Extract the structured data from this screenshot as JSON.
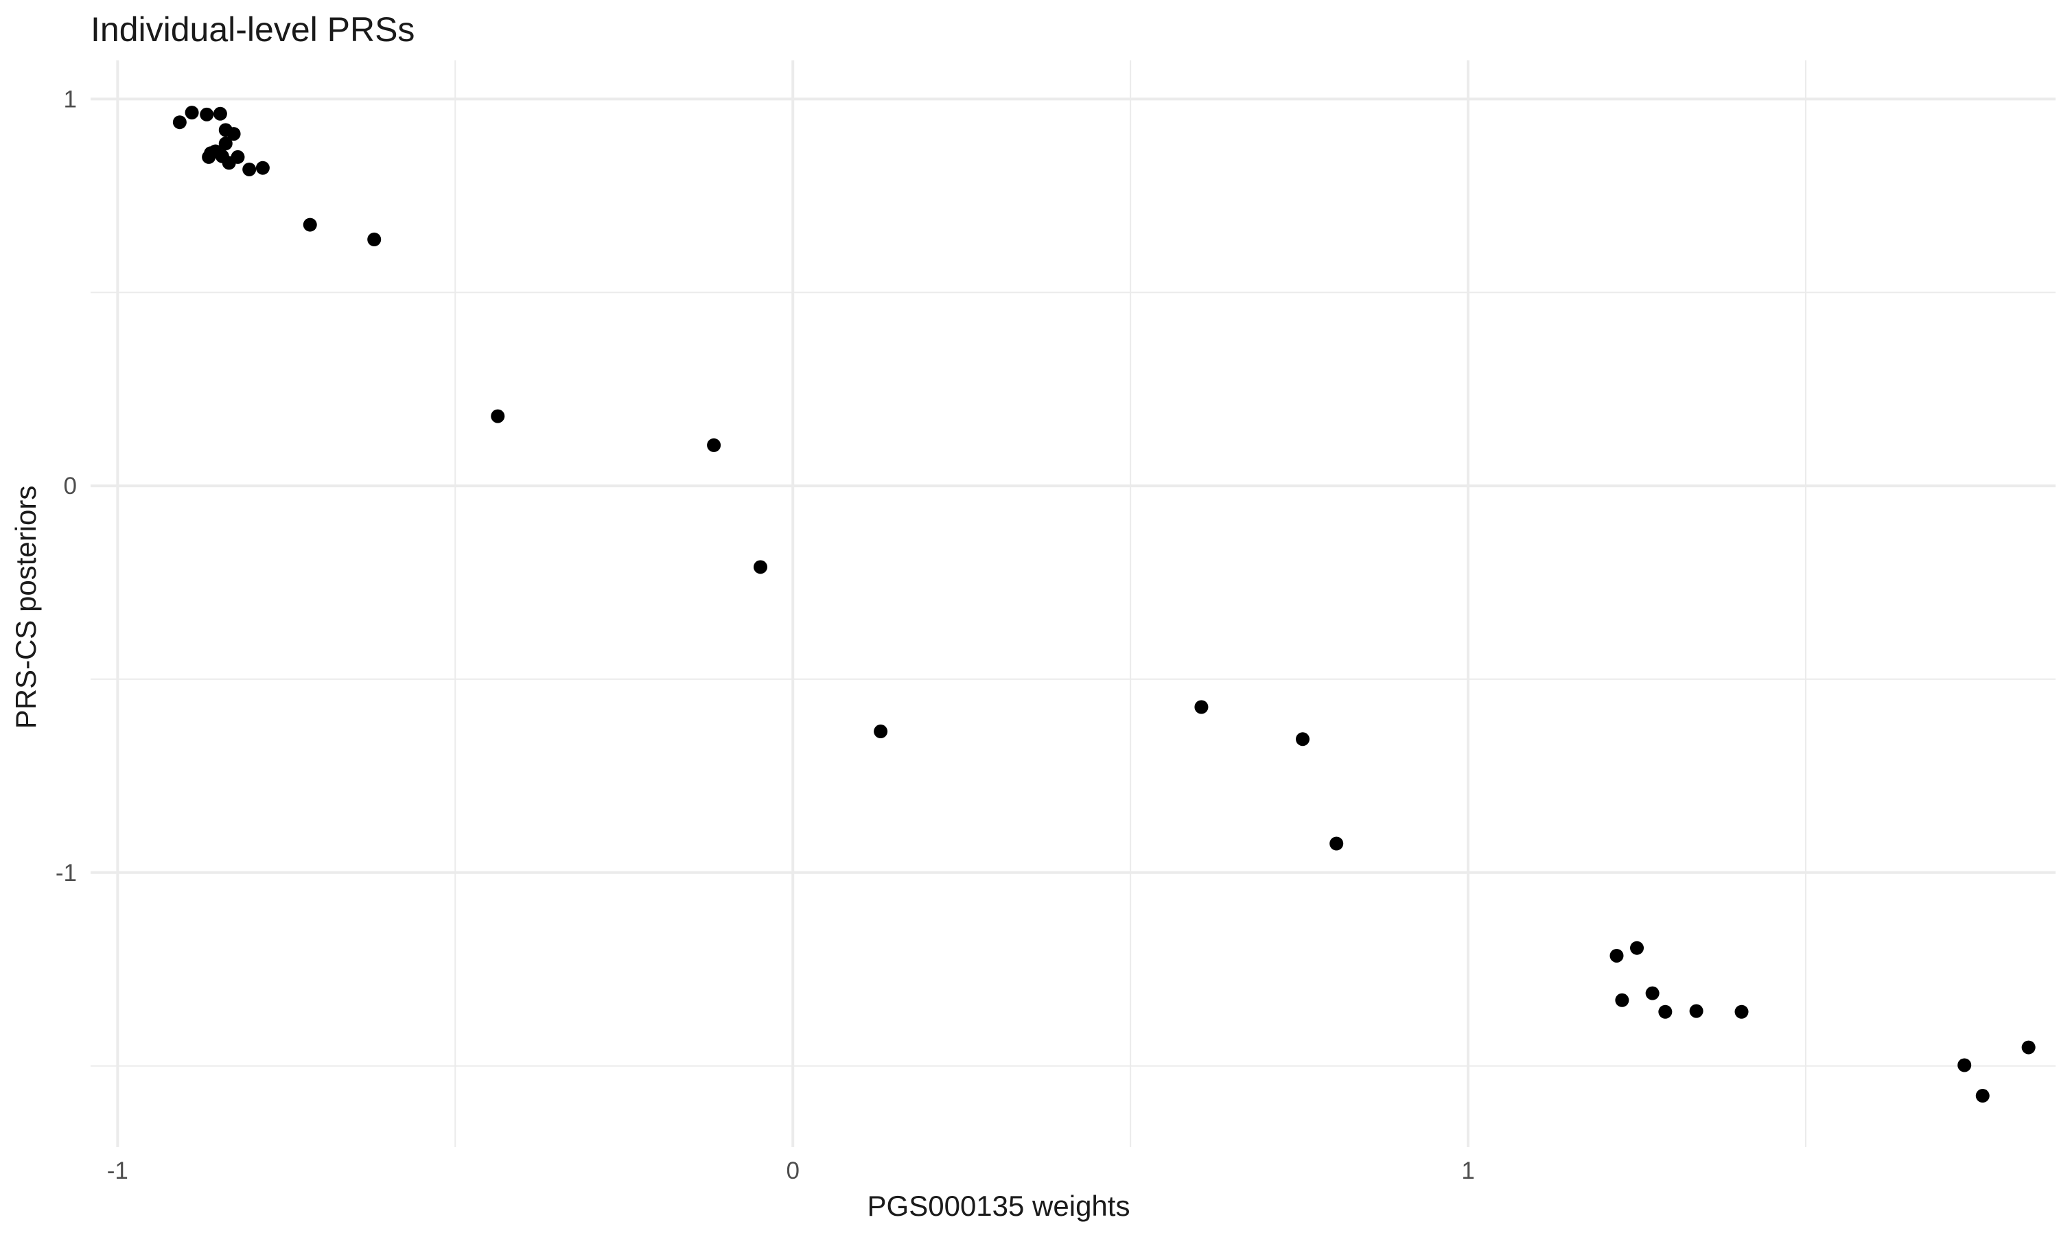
{
  "chart_data": {
    "type": "scatter",
    "title": "Individual-level PRSs",
    "xlabel": "PGS000135 weights",
    "ylabel": "PRS-CS posteriors",
    "xlim": [
      -1.04,
      1.87
    ],
    "ylim": [
      -1.71,
      1.1
    ],
    "x_major_ticks": [
      -1,
      0,
      1
    ],
    "x_minor_ticks": [
      -0.5,
      0.5,
      1.5
    ],
    "y_major_ticks": [
      -1,
      0,
      1
    ],
    "y_minor_ticks": [
      -1.5,
      -0.5,
      0.5
    ],
    "x_tick_labels": [
      "-1",
      "0",
      "1"
    ],
    "y_tick_labels": [
      "-1",
      "0",
      "1"
    ],
    "grid": true,
    "legend": "none",
    "point_color": "#000000",
    "points": [
      {
        "x": -0.908,
        "y": 0.94
      },
      {
        "x": -0.89,
        "y": 0.965
      },
      {
        "x": -0.868,
        "y": 0.96
      },
      {
        "x": -0.848,
        "y": 0.962
      },
      {
        "x": -0.84,
        "y": 0.92
      },
      {
        "x": -0.828,
        "y": 0.91
      },
      {
        "x": -0.84,
        "y": 0.885
      },
      {
        "x": -0.862,
        "y": 0.86
      },
      {
        "x": -0.855,
        "y": 0.865
      },
      {
        "x": -0.845,
        "y": 0.852
      },
      {
        "x": -0.835,
        "y": 0.835
      },
      {
        "x": -0.865,
        "y": 0.85
      },
      {
        "x": -0.822,
        "y": 0.85
      },
      {
        "x": -0.805,
        "y": 0.818
      },
      {
        "x": -0.785,
        "y": 0.822
      },
      {
        "x": -0.715,
        "y": 0.675
      },
      {
        "x": -0.62,
        "y": 0.637
      },
      {
        "x": -0.437,
        "y": 0.18
      },
      {
        "x": -0.117,
        "y": 0.105
      },
      {
        "x": -0.048,
        "y": -0.21
      },
      {
        "x": 0.13,
        "y": -0.635
      },
      {
        "x": 0.605,
        "y": -0.572
      },
      {
        "x": 0.755,
        "y": -0.655
      },
      {
        "x": 0.805,
        "y": -0.925
      },
      {
        "x": 1.22,
        "y": -1.215
      },
      {
        "x": 1.25,
        "y": -1.195
      },
      {
        "x": 1.228,
        "y": -1.33
      },
      {
        "x": 1.273,
        "y": -1.312
      },
      {
        "x": 1.292,
        "y": -1.36
      },
      {
        "x": 1.338,
        "y": -1.358
      },
      {
        "x": 1.405,
        "y": -1.36
      },
      {
        "x": 1.83,
        "y": -1.452
      },
      {
        "x": 1.735,
        "y": -1.498
      },
      {
        "x": 1.762,
        "y": -1.577
      }
    ]
  }
}
